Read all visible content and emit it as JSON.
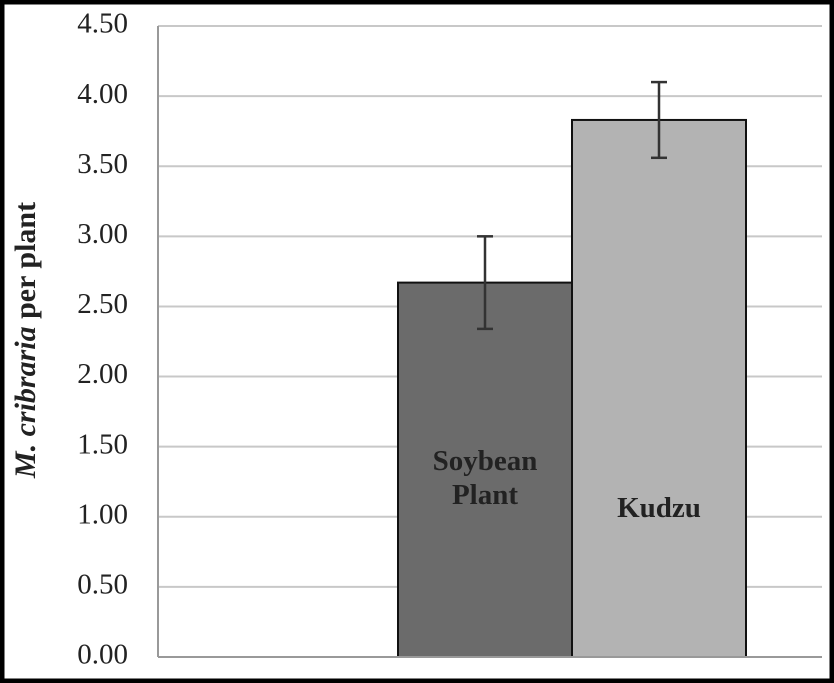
{
  "chart_data": {
    "type": "bar",
    "y_label": "M. cribraria per plant",
    "categories": [
      "Soybean Plant",
      "Kudzu"
    ],
    "values": [
      2.67,
      3.83
    ],
    "errors": [
      0.33,
      0.27
    ],
    "colors": [
      "#6b6b6b",
      "#b3b3b3"
    ],
    "ylim": [
      0,
      4.5
    ],
    "yticks": [
      {
        "value": 0,
        "label": "0.00"
      },
      {
        "value": 0.5,
        "label": "0.50"
      },
      {
        "value": 1,
        "label": "1.00"
      },
      {
        "value": 1.5,
        "label": "1.50"
      },
      {
        "value": 2,
        "label": "2.00"
      },
      {
        "value": 2.5,
        "label": "2.50"
      },
      {
        "value": 3,
        "label": "3.00"
      },
      {
        "value": 3.5,
        "label": "3.50"
      },
      {
        "value": 4,
        "label": "4.00"
      },
      {
        "value": 4.5,
        "label": "4.50"
      }
    ],
    "grid": true
  }
}
